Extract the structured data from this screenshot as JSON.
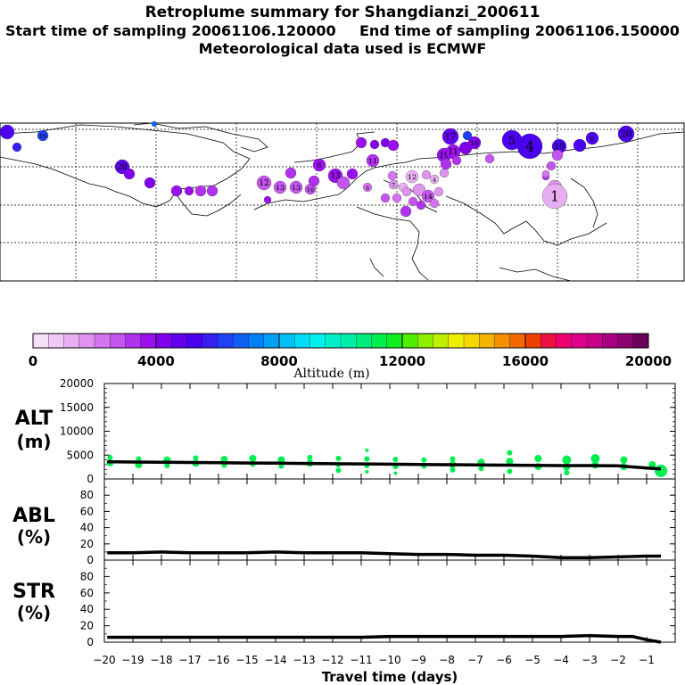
{
  "header": {
    "title": "Retroplume summary for Shangdianzi_200611",
    "start": "Start time of sampling 20061106.120000",
    "end": "End time of sampling 20061106.150000",
    "met": "Meteorological data used is ECMWF"
  },
  "colorbar": {
    "label": "Altitude (m)",
    "tick_labels": [
      "0",
      "4000",
      "8000",
      "12000",
      "16000",
      "20000"
    ],
    "colors": [
      "#f7dff7",
      "#f0c8f5",
      "#e8aef2",
      "#df92f0",
      "#d474ee",
      "#c455ee",
      "#b032ee",
      "#9b10ee",
      "#8000ee",
      "#6200ee",
      "#4b00f0",
      "#3520f0",
      "#2040f5",
      "#1060f5",
      "#0080f5",
      "#00a0f5",
      "#00c0f5",
      "#00dcf5",
      "#00f0f0",
      "#00f0c8",
      "#00eeaa",
      "#00ee80",
      "#00ee50",
      "#10ee20",
      "#50ee00",
      "#90ee00",
      "#c0f000",
      "#eef000",
      "#f5d800",
      "#f5b400",
      "#f59000",
      "#f56800",
      "#f04000",
      "#ee1040",
      "#ee0070",
      "#e0008c",
      "#c8008c",
      "#a80080",
      "#8c0070",
      "#6a005a"
    ]
  },
  "map": {
    "labels": [
      "1",
      "2",
      "3",
      "4",
      "5",
      "6",
      "7",
      "8",
      "9",
      "10",
      "11",
      "12",
      "13",
      "14",
      "15",
      "16",
      "17",
      "18",
      "19",
      "20"
    ]
  },
  "chart_data": [
    {
      "name": "ALT",
      "type": "line",
      "title": "ALT",
      "ylabel": "(m)",
      "ylim": [
        0,
        20000
      ],
      "yticks": [
        "20000",
        "15000",
        "10000",
        "5000",
        "0"
      ],
      "x": [
        -19.9,
        -19,
        -18,
        -17,
        -16,
        -15,
        -14,
        -13,
        -12,
        -11,
        -10,
        -9,
        -8,
        -7,
        -6,
        -5,
        -4,
        -3,
        -2,
        -1,
        -0.5
      ],
      "values": [
        3600,
        3550,
        3500,
        3450,
        3400,
        3350,
        3300,
        3250,
        3200,
        3150,
        3100,
        3050,
        3000,
        2950,
        2900,
        2850,
        2800,
        2800,
        2750,
        2300,
        2100
      ],
      "points": [
        [
          -19.8,
          4500,
          3
        ],
        [
          -19.8,
          3400,
          4
        ],
        [
          -18.8,
          4200,
          3
        ],
        [
          -18.8,
          3000,
          4
        ],
        [
          -17.8,
          4000,
          4
        ],
        [
          -17.8,
          2800,
          3
        ],
        [
          -16.8,
          4400,
          3
        ],
        [
          -16.8,
          3300,
          4
        ],
        [
          -15.8,
          4100,
          4
        ],
        [
          -15.8,
          2900,
          3
        ],
        [
          -14.8,
          4300,
          4
        ],
        [
          -14.8,
          3100,
          3
        ],
        [
          -13.8,
          4000,
          4
        ],
        [
          -13.8,
          2700,
          3
        ],
        [
          -12.8,
          4500,
          3
        ],
        [
          -12.8,
          3300,
          4
        ],
        [
          -11.8,
          4300,
          3
        ],
        [
          -11.8,
          3000,
          3
        ],
        [
          -11.8,
          1800,
          3
        ],
        [
          -10.8,
          6000,
          2
        ],
        [
          -10.8,
          4200,
          3
        ],
        [
          -10.8,
          2800,
          3
        ],
        [
          -10.8,
          1500,
          2
        ],
        [
          -9.8,
          4100,
          3
        ],
        [
          -9.8,
          2600,
          3
        ],
        [
          -9.8,
          1200,
          2
        ],
        [
          -8.8,
          4000,
          3
        ],
        [
          -8.8,
          2700,
          3
        ],
        [
          -7.8,
          4200,
          3
        ],
        [
          -7.8,
          3000,
          4
        ],
        [
          -7.8,
          1900,
          3
        ],
        [
          -6.8,
          3500,
          4
        ],
        [
          -6.8,
          2200,
          3
        ],
        [
          -5.8,
          5500,
          3
        ],
        [
          -5.8,
          3700,
          4
        ],
        [
          -5.8,
          1600,
          3
        ],
        [
          -4.8,
          4300,
          4
        ],
        [
          -4.8,
          2600,
          4
        ],
        [
          -3.8,
          4000,
          5
        ],
        [
          -3.8,
          2500,
          4
        ],
        [
          -3.8,
          1300,
          3
        ],
        [
          -2.8,
          4300,
          5
        ],
        [
          -2.8,
          2900,
          4
        ],
        [
          -1.8,
          4000,
          4
        ],
        [
          -1.8,
          2600,
          4
        ],
        [
          -0.8,
          3000,
          4
        ],
        [
          -0.5,
          1700,
          7
        ]
      ],
      "color": "#00ee50"
    },
    {
      "name": "ABL",
      "type": "line",
      "title": "ABL",
      "ylabel": "(%)",
      "ylim": [
        0,
        100
      ],
      "yticks": [
        "80",
        "60",
        "40",
        "20",
        "0"
      ],
      "x": [
        -19.9,
        -19,
        -18,
        -17,
        -16,
        -15,
        -14,
        -13,
        -12,
        -11,
        -10,
        -9,
        -8,
        -7,
        -6,
        -5,
        -4,
        -3,
        -2,
        -1,
        -0.5
      ],
      "values": [
        9,
        9,
        10,
        9,
        9,
        9,
        10,
        9,
        9,
        9,
        8,
        7,
        7,
        6,
        6,
        5,
        3,
        3,
        4,
        5,
        5
      ]
    },
    {
      "name": "STR",
      "type": "line",
      "title": "STR",
      "ylabel": "(%)",
      "ylim": [
        0,
        100
      ],
      "yticks": [
        "80",
        "60",
        "40",
        "20",
        "0"
      ],
      "x": [
        -19.9,
        -19,
        -18,
        -17,
        -16,
        -15,
        -14,
        -13,
        -12,
        -11,
        -10,
        -9,
        -8,
        -7,
        -6,
        -5,
        -4,
        -3,
        -2,
        -1.5,
        -1,
        -0.5
      ],
      "values": [
        6,
        6,
        6,
        6,
        6,
        6,
        6,
        6,
        6,
        6,
        7,
        7,
        7,
        7,
        7,
        7,
        7,
        8,
        7,
        7,
        3,
        0
      ]
    }
  ],
  "xaxis": {
    "label": "Travel time (days)",
    "xlim": [
      -20,
      0
    ],
    "tick_values": [
      -20,
      -19,
      -18,
      -17,
      -16,
      -15,
      -14,
      -13,
      -12,
      -11,
      -10,
      -9,
      -8,
      -7,
      -6,
      -5,
      -4,
      -3,
      -2,
      -1
    ],
    "tick_labels": [
      "−20",
      "−19",
      "−18",
      "−17",
      "−16",
      "−15",
      "−14",
      "−13",
      "−12",
      "−11",
      "−10",
      "−9",
      "−8",
      "−7",
      "−6",
      "−5",
      "−4",
      "−3",
      "−2",
      "−1"
    ]
  }
}
